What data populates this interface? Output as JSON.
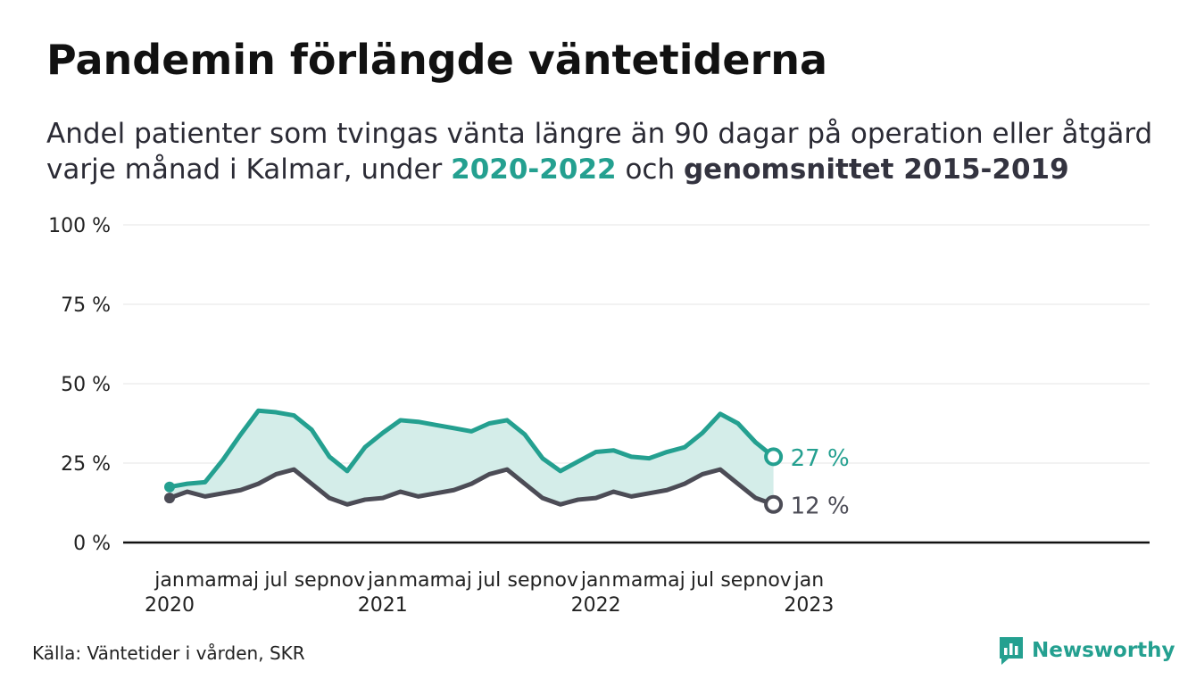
{
  "title": "Pandemin förlängde väntetiderna",
  "subtitle": {
    "line1": "Andel patienter som tvingas vänta längre än 90 dagar på operation eller åtgärd",
    "line2_prefix": "varje månad i Kalmar, under ",
    "highlight_a": "2020-2022",
    "mid": " och ",
    "highlight_b": "genomsnittet 2015-2019"
  },
  "source": "Källa: Väntetider i vården, SKR",
  "brand": {
    "name": "Newsworthy",
    "icon": "bar-chart-logo-icon"
  },
  "colors": {
    "accent": "#24a090",
    "accent_fill": "#d4ede9",
    "baseline": "#4c4c56",
    "gridline": "#e6e6e6",
    "axis": "#111111"
  },
  "chart_data": {
    "type": "area",
    "ylim": [
      0,
      100
    ],
    "yticks": [
      0,
      25,
      50,
      75,
      100
    ],
    "ytick_labels": [
      "0 %",
      "25 %",
      "50 %",
      "75 %",
      "100 %"
    ],
    "xlim": [
      "2020-01",
      "2023-01"
    ],
    "xticks": [
      {
        "x": "2020-01",
        "month": "jan",
        "year": "2020"
      },
      {
        "x": "2020-03",
        "month": "mar",
        "year": ""
      },
      {
        "x": "2020-05",
        "month": "maj",
        "year": ""
      },
      {
        "x": "2020-07",
        "month": "jul",
        "year": ""
      },
      {
        "x": "2020-09",
        "month": "sep",
        "year": ""
      },
      {
        "x": "2020-11",
        "month": "nov",
        "year": ""
      },
      {
        "x": "2021-01",
        "month": "jan",
        "year": "2021"
      },
      {
        "x": "2021-03",
        "month": "mar",
        "year": ""
      },
      {
        "x": "2021-05",
        "month": "maj",
        "year": ""
      },
      {
        "x": "2021-07",
        "month": "jul",
        "year": ""
      },
      {
        "x": "2021-09",
        "month": "sep",
        "year": ""
      },
      {
        "x": "2021-11",
        "month": "nov",
        "year": ""
      },
      {
        "x": "2022-01",
        "month": "jan",
        "year": "2022"
      },
      {
        "x": "2022-03",
        "month": "mar",
        "year": ""
      },
      {
        "x": "2022-05",
        "month": "maj",
        "year": ""
      },
      {
        "x": "2022-07",
        "month": "jul",
        "year": ""
      },
      {
        "x": "2022-09",
        "month": "sep",
        "year": ""
      },
      {
        "x": "2022-11",
        "month": "nov",
        "year": ""
      },
      {
        "x": "2023-01",
        "month": "jan",
        "year": "2023"
      }
    ],
    "x": [
      "2020-01",
      "2020-02",
      "2020-03",
      "2020-04",
      "2020-05",
      "2020-06",
      "2020-07",
      "2020-08",
      "2020-09",
      "2020-10",
      "2020-11",
      "2020-12",
      "2021-01",
      "2021-02",
      "2021-03",
      "2021-04",
      "2021-05",
      "2021-06",
      "2021-07",
      "2021-08",
      "2021-09",
      "2021-10",
      "2021-11",
      "2021-12",
      "2022-01",
      "2022-02",
      "2022-03",
      "2022-04",
      "2022-05",
      "2022-06",
      "2022-07",
      "2022-08",
      "2022-09",
      "2022-10",
      "2022-11"
    ],
    "series": [
      {
        "name": "2020-2022",
        "color": "#24a090",
        "values": [
          17.5,
          18.5,
          19,
          26,
          34,
          41.5,
          41,
          40,
          35.5,
          27,
          22.5,
          30,
          34.5,
          38.5,
          38,
          37,
          36,
          35,
          37.5,
          38.5,
          34,
          26.5,
          22.5,
          25.5,
          28.5,
          29,
          27,
          26.5,
          28.5,
          30,
          34.5,
          40.5,
          37.5,
          31.5,
          27
        ],
        "end_label": "27 %"
      },
      {
        "name": "genomsnittet 2015-2019",
        "color": "#4c4c56",
        "values": [
          14,
          16,
          14.5,
          15.5,
          16.5,
          18.5,
          21.5,
          23,
          18.5,
          14,
          12,
          13.5,
          14,
          16,
          14.5,
          15.5,
          16.5,
          18.5,
          21.5,
          23,
          18.5,
          14,
          12,
          13.5,
          14,
          16,
          14.5,
          15.5,
          16.5,
          18.5,
          21.5,
          23,
          18.5,
          14,
          12
        ],
        "end_label": "12 %"
      }
    ],
    "fill_between": true,
    "grid": true
  }
}
